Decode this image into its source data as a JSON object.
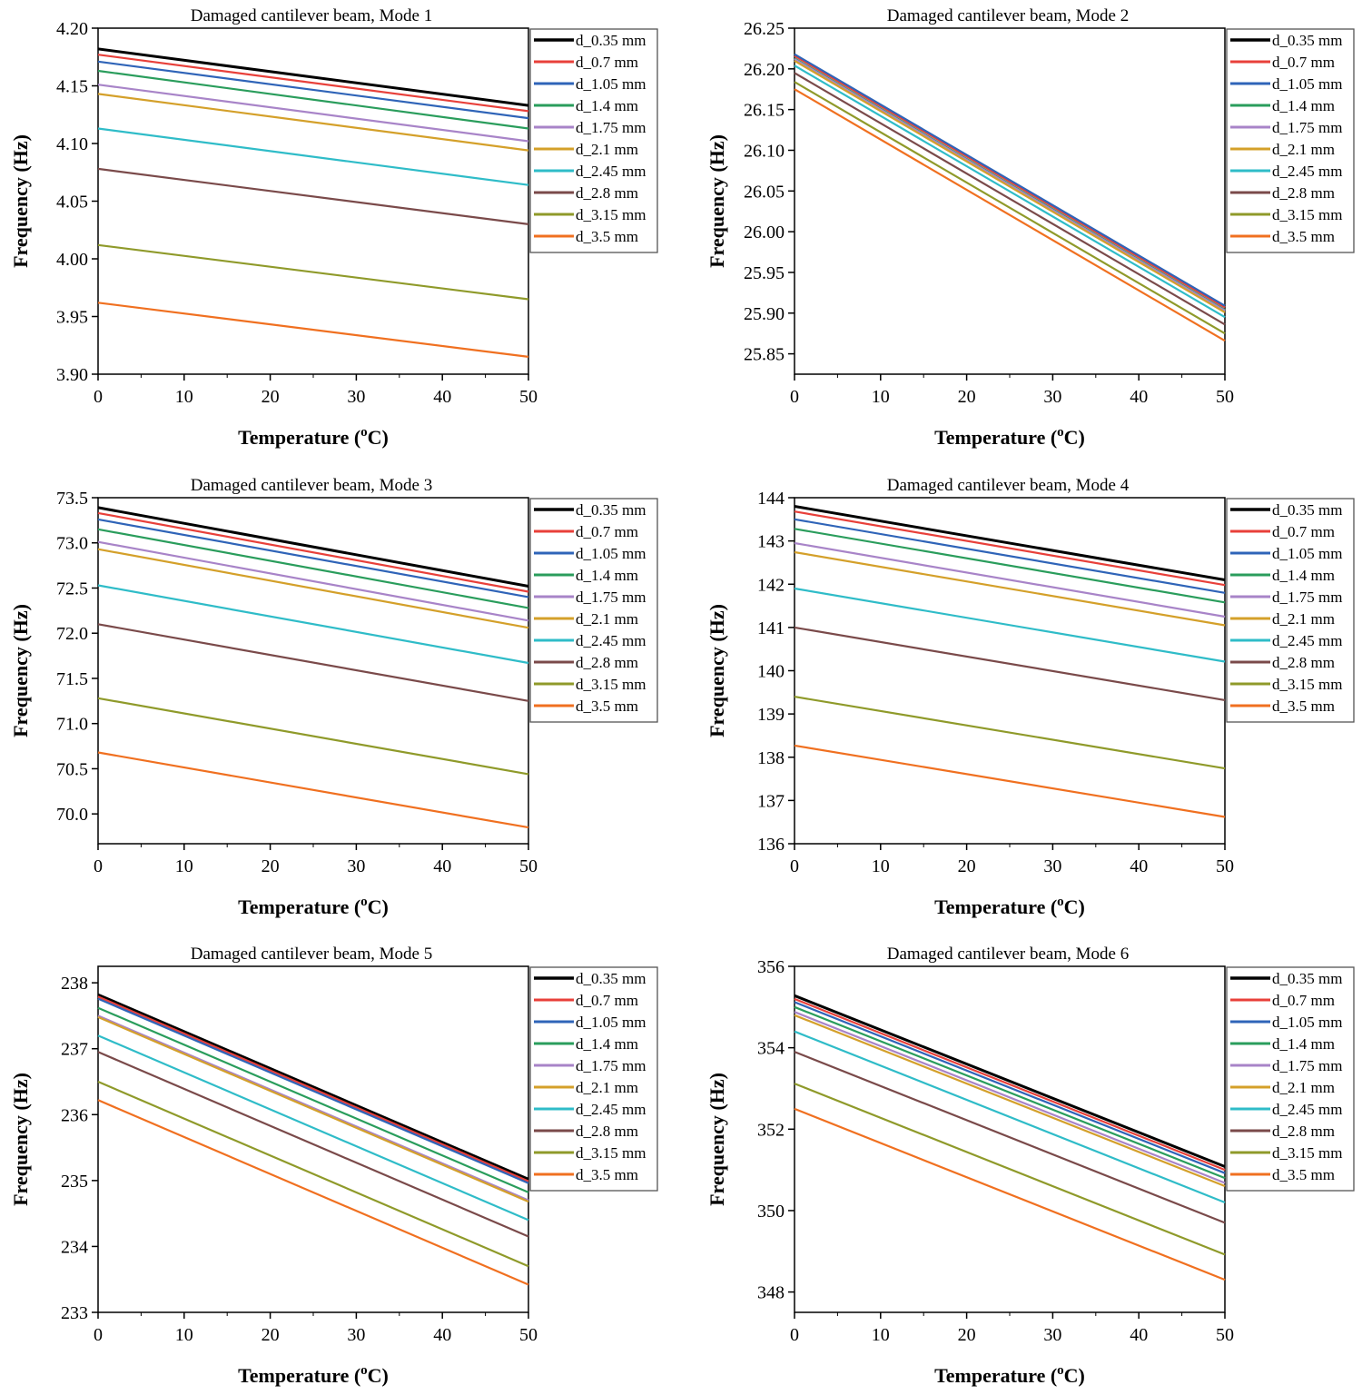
{
  "series_names": [
    "d_0.35 mm",
    "d_0.7 mm",
    "d_1.05 mm",
    "d_1.4 mm",
    "d_1.75 mm",
    "d_2.1 mm",
    "d_2.45 mm",
    "d_2.8 mm",
    "d_3.15 mm",
    "d_3.5 mm"
  ],
  "series_colors": [
    "#000000",
    "#e8403a",
    "#2f64b8",
    "#2a9d5c",
    "#a884c8",
    "#d4a02a",
    "#2fbcc8",
    "#7a4a4a",
    "#8f9a2a",
    "#f07020"
  ],
  "chart_data": [
    {
      "type": "line",
      "title": "Damaged cantilever beam, Mode 1",
      "xlabel": "Temperature (",
      "xlabel_sup": "o",
      "xlabel_end": "C)",
      "ylabel": "Frequency (Hz)",
      "xlim": [
        0,
        50
      ],
      "ylim": [
        3.9,
        4.2
      ],
      "xticks": [
        "0",
        "10",
        "20",
        "30",
        "40",
        "50"
      ],
      "yticks": [
        "3.90",
        "3.95",
        "4.00",
        "4.05",
        "4.10",
        "4.15",
        "4.20"
      ],
      "x": [
        0,
        50
      ],
      "series": [
        {
          "name": "d_0.35 mm",
          "values": [
            4.182,
            4.133
          ]
        },
        {
          "name": "d_0.7 mm",
          "values": [
            4.177,
            4.128
          ]
        },
        {
          "name": "d_1.05 mm",
          "values": [
            4.171,
            4.122
          ]
        },
        {
          "name": "d_1.4 mm",
          "values": [
            4.163,
            4.113
          ]
        },
        {
          "name": "d_1.75 mm",
          "values": [
            4.151,
            4.102
          ]
        },
        {
          "name": "d_2.1 mm",
          "values": [
            4.143,
            4.094
          ]
        },
        {
          "name": "d_2.45 mm",
          "values": [
            4.113,
            4.064
          ]
        },
        {
          "name": "d_2.8 mm",
          "values": [
            4.078,
            4.03
          ]
        },
        {
          "name": "d_3.15 mm",
          "values": [
            4.012,
            3.965
          ]
        },
        {
          "name": "d_3.5 mm",
          "values": [
            3.962,
            3.915
          ]
        }
      ]
    },
    {
      "type": "line",
      "title": "Damaged cantilever beam, Mode 2",
      "xlabel": "Temperature (",
      "xlabel_sup": "o",
      "xlabel_end": "C)",
      "ylabel": "Frequency (Hz)",
      "xlim": [
        0,
        50
      ],
      "ylim": [
        25.825,
        26.25
      ],
      "xticks": [
        "0",
        "10",
        "20",
        "30",
        "40",
        "50"
      ],
      "yticks": [
        "25.85",
        "25.90",
        "25.95",
        "26.00",
        "26.05",
        "26.10",
        "26.15",
        "26.20",
        "26.25"
      ],
      "x": [
        0,
        50
      ],
      "series": [
        {
          "name": "d_0.35 mm",
          "values": [
            26.217,
            25.908
          ]
        },
        {
          "name": "d_0.7 mm",
          "values": [
            26.216,
            25.907
          ]
        },
        {
          "name": "d_1.05 mm",
          "values": [
            26.218,
            25.909
          ]
        },
        {
          "name": "d_1.4 mm",
          "values": [
            26.213,
            25.904
          ]
        },
        {
          "name": "d_1.75 mm",
          "values": [
            26.212,
            25.903
          ]
        },
        {
          "name": "d_2.1 mm",
          "values": [
            26.21,
            25.901
          ]
        },
        {
          "name": "d_2.45 mm",
          "values": [
            26.204,
            25.895
          ]
        },
        {
          "name": "d_2.8 mm",
          "values": [
            26.195,
            25.886
          ]
        },
        {
          "name": "d_3.15 mm",
          "values": [
            26.184,
            25.875
          ]
        },
        {
          "name": "d_3.5 mm",
          "values": [
            26.175,
            25.866
          ]
        }
      ]
    },
    {
      "type": "line",
      "title": "Damaged cantilever beam, Mode 3",
      "xlabel": "Temperature (",
      "xlabel_sup": "o",
      "xlabel_end": "C)",
      "ylabel": "Frequency (Hz)",
      "xlim": [
        0,
        50
      ],
      "ylim": [
        69.67,
        73.5
      ],
      "xticks": [
        "0",
        "10",
        "20",
        "30",
        "40",
        "50"
      ],
      "yticks": [
        "70.0",
        "70.5",
        "71.0",
        "71.5",
        "72.0",
        "72.5",
        "73.0",
        "73.5"
      ],
      "x": [
        0,
        50
      ],
      "series": [
        {
          "name": "d_0.35 mm",
          "values": [
            73.39,
            72.52
          ]
        },
        {
          "name": "d_0.7 mm",
          "values": [
            73.33,
            72.46
          ]
        },
        {
          "name": "d_1.05 mm",
          "values": [
            73.26,
            72.4
          ]
        },
        {
          "name": "d_1.4 mm",
          "values": [
            73.15,
            72.28
          ]
        },
        {
          "name": "d_1.75 mm",
          "values": [
            73.01,
            72.14
          ]
        },
        {
          "name": "d_2.1 mm",
          "values": [
            72.93,
            72.06
          ]
        },
        {
          "name": "d_2.45 mm",
          "values": [
            72.53,
            71.67
          ]
        },
        {
          "name": "d_2.8 mm",
          "values": [
            72.1,
            71.25
          ]
        },
        {
          "name": "d_3.15 mm",
          "values": [
            71.28,
            70.44
          ]
        },
        {
          "name": "d_3.5 mm",
          "values": [
            70.68,
            69.85
          ]
        }
      ]
    },
    {
      "type": "line",
      "title": "Damaged cantilever beam, Mode 4",
      "xlabel": "Temperature (",
      "xlabel_sup": "o",
      "xlabel_end": "C)",
      "ylabel": "Frequency (Hz)",
      "xlim": [
        0,
        50
      ],
      "ylim": [
        136,
        144
      ],
      "xticks": [
        "0",
        "10",
        "20",
        "30",
        "40",
        "50"
      ],
      "yticks": [
        "136",
        "137",
        "138",
        "139",
        "140",
        "141",
        "142",
        "143",
        "144"
      ],
      "x": [
        0,
        50
      ],
      "series": [
        {
          "name": "d_0.35 mm",
          "values": [
            143.8,
            142.1
          ]
        },
        {
          "name": "d_0.7 mm",
          "values": [
            143.68,
            141.98
          ]
        },
        {
          "name": "d_1.05 mm",
          "values": [
            143.5,
            141.8
          ]
        },
        {
          "name": "d_1.4 mm",
          "values": [
            143.28,
            141.58
          ]
        },
        {
          "name": "d_1.75 mm",
          "values": [
            142.95,
            141.25
          ]
        },
        {
          "name": "d_2.1 mm",
          "values": [
            142.74,
            141.05
          ]
        },
        {
          "name": "d_2.45 mm",
          "values": [
            141.9,
            140.21
          ]
        },
        {
          "name": "d_2.8 mm",
          "values": [
            141.0,
            139.32
          ]
        },
        {
          "name": "d_3.15 mm",
          "values": [
            139.4,
            137.74
          ]
        },
        {
          "name": "d_3.5 mm",
          "values": [
            138.27,
            136.62
          ]
        }
      ]
    },
    {
      "type": "line",
      "title": "Damaged cantilever beam, Mode 5",
      "xlabel": "Temperature (",
      "xlabel_sup": "o",
      "xlabel_end": "C)",
      "ylabel": "Frequency (Hz)",
      "xlim": [
        0,
        50
      ],
      "ylim": [
        233,
        238.25
      ],
      "xticks": [
        "0",
        "10",
        "20",
        "30",
        "40",
        "50"
      ],
      "yticks": [
        "233",
        "234",
        "235",
        "236",
        "237",
        "238"
      ],
      "x": [
        0,
        50
      ],
      "series": [
        {
          "name": "d_0.35 mm",
          "values": [
            237.82,
            235.02
          ]
        },
        {
          "name": "d_0.7 mm",
          "values": [
            237.79,
            234.99
          ]
        },
        {
          "name": "d_1.05 mm",
          "values": [
            237.76,
            234.96
          ]
        },
        {
          "name": "d_1.4 mm",
          "values": [
            237.62,
            234.82
          ]
        },
        {
          "name": "d_1.75 mm",
          "values": [
            237.5,
            234.7
          ]
        },
        {
          "name": "d_2.1 mm",
          "values": [
            237.48,
            234.68
          ]
        },
        {
          "name": "d_2.45 mm",
          "values": [
            237.2,
            234.4
          ]
        },
        {
          "name": "d_2.8 mm",
          "values": [
            236.95,
            234.15
          ]
        },
        {
          "name": "d_3.15 mm",
          "values": [
            236.5,
            233.7
          ]
        },
        {
          "name": "d_3.5 mm",
          "values": [
            236.22,
            233.42
          ]
        }
      ]
    },
    {
      "type": "line",
      "title": "Damaged cantilever beam, Mode 6",
      "xlabel": "Temperature (",
      "xlabel_sup": "o",
      "xlabel_end": "C)",
      "ylabel": "Frequency (Hz)",
      "xlim": [
        0,
        50
      ],
      "ylim": [
        347.5,
        356
      ],
      "xticks": [
        "0",
        "10",
        "20",
        "30",
        "40",
        "50"
      ],
      "yticks": [
        "348",
        "350",
        "352",
        "354",
        "356"
      ],
      "x": [
        0,
        50
      ],
      "series": [
        {
          "name": "d_0.35 mm",
          "values": [
            355.28,
            351.08
          ]
        },
        {
          "name": "d_0.7 mm",
          "values": [
            355.2,
            351.0
          ]
        },
        {
          "name": "d_1.05 mm",
          "values": [
            355.12,
            350.92
          ]
        },
        {
          "name": "d_1.4 mm",
          "values": [
            355.0,
            350.8
          ]
        },
        {
          "name": "d_1.75 mm",
          "values": [
            354.88,
            350.68
          ]
        },
        {
          "name": "d_2.1 mm",
          "values": [
            354.8,
            350.6
          ]
        },
        {
          "name": "d_2.45 mm",
          "values": [
            354.4,
            350.2
          ]
        },
        {
          "name": "d_2.8 mm",
          "values": [
            353.9,
            349.7
          ]
        },
        {
          "name": "d_3.15 mm",
          "values": [
            353.12,
            348.92
          ]
        },
        {
          "name": "d_3.5 mm",
          "values": [
            352.5,
            348.3
          ]
        }
      ]
    }
  ]
}
